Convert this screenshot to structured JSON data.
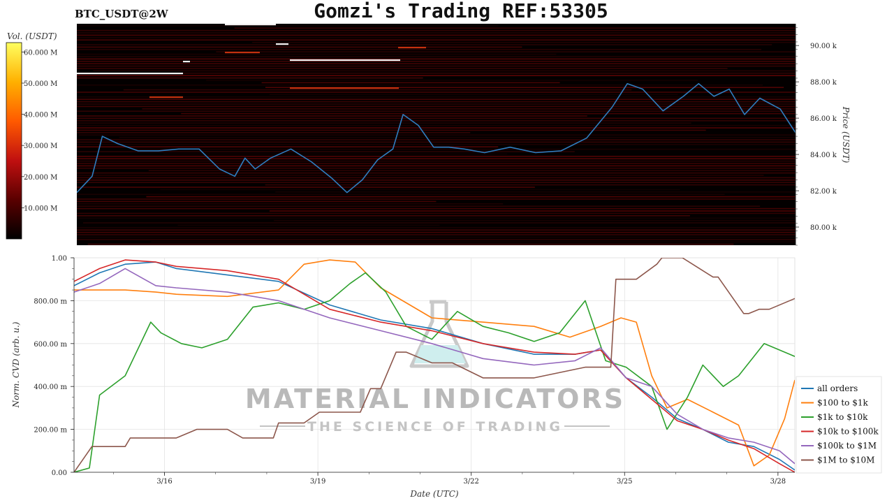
{
  "header": {
    "symbol": "BTC_USDT@2W",
    "title": "Gomzi's Trading REF:53305"
  },
  "watermark": {
    "name": "MATERIAL INDICATORS",
    "tagline": "THE SCIENCE OF TRADING"
  },
  "colorbar": {
    "label": "Vol. (USDT)",
    "ticks": [
      "10.000 M",
      "20.000 M",
      "30.000 M",
      "40.000 M",
      "50.000 M",
      "60.000 M"
    ],
    "values": [
      10,
      20,
      30,
      40,
      50,
      60
    ],
    "range": [
      0,
      63
    ],
    "colormap": [
      "#000000",
      "#5a0000",
      "#c01010",
      "#ff5a00",
      "#ffb000",
      "#ffff60"
    ]
  },
  "chart_data": [
    {
      "type": "heatmap",
      "ylabel": "Price (USDT)",
      "ylim": [
        79,
        91.2
      ],
      "y_ticks": [
        "80.00 k",
        "82.00 k",
        "84.00 k",
        "86.00 k",
        "88.00 k",
        "90.00 k"
      ],
      "y_tick_values": [
        80,
        82,
        84,
        86,
        88,
        90
      ],
      "x_range_days": [
        0,
        14.1
      ],
      "series": [
        {
          "name": "",
          "color": "#2f7ec1",
          "x": [
            0,
            0.3,
            0.5,
            0.8,
            1.2,
            1.6,
            2.0,
            2.4,
            2.8,
            3.1,
            3.3,
            3.5,
            3.8,
            4.2,
            4.6,
            5.0,
            5.3,
            5.6,
            5.9,
            6.2,
            6.4,
            6.7,
            7.0,
            7.3,
            7.6,
            8.0,
            8.5,
            9.0,
            9.5,
            10.0,
            10.5,
            10.8,
            11.1,
            11.5,
            11.9,
            12.2,
            12.5,
            12.8,
            13.1,
            13.4,
            13.8,
            14.1
          ],
          "y": [
            81.9,
            82.8,
            85.0,
            84.6,
            84.2,
            84.2,
            84.3,
            84.3,
            83.2,
            82.8,
            83.8,
            83.2,
            83.8,
            84.3,
            83.6,
            82.7,
            81.9,
            82.6,
            83.7,
            84.3,
            86.2,
            85.6,
            84.4,
            84.4,
            84.3,
            84.1,
            84.4,
            84.1,
            84.2,
            84.9,
            86.6,
            87.9,
            87.6,
            86.4,
            87.2,
            87.9,
            87.2,
            87.6,
            86.2,
            87.1,
            86.5,
            85.2
          ]
        }
      ]
    },
    {
      "type": "line",
      "xlabel": "Date (UTC)",
      "ylabel": "Norm. CVD (arb. u.)",
      "ylim": [
        0,
        1
      ],
      "y_ticks": [
        "0.00",
        "200.00 m",
        "400.00 m",
        "600.00 m",
        "800.00 m",
        "1.00"
      ],
      "y_tick_values": [
        0,
        0.2,
        0.4,
        0.6,
        0.8,
        1.0
      ],
      "x_categories": [
        "3/16",
        "3/19",
        "3/22",
        "3/25",
        "3/28"
      ],
      "x_tick_days": [
        1.77,
        4.77,
        7.77,
        10.77,
        13.77
      ],
      "x_range_days": [
        0,
        14.1
      ],
      "legend_position": "right",
      "series": [
        {
          "name": "all orders",
          "color": "#1f77b4",
          "x": [
            0,
            0.5,
            1.0,
            1.6,
            2.0,
            3.0,
            4.0,
            5.0,
            6.0,
            7.0,
            8.0,
            9.0,
            9.8,
            10.3,
            10.8,
            11.3,
            11.8,
            12.3,
            12.8,
            13.3,
            13.8,
            14.1
          ],
          "y": [
            0.87,
            0.93,
            0.97,
            0.98,
            0.95,
            0.92,
            0.89,
            0.78,
            0.71,
            0.67,
            0.6,
            0.55,
            0.55,
            0.57,
            0.44,
            0.35,
            0.25,
            0.2,
            0.14,
            0.12,
            0.06,
            0.01
          ]
        },
        {
          "name": "$100 to $1k",
          "color": "#ff7f0e",
          "x": [
            0,
            1.0,
            1.6,
            2.0,
            3.0,
            4.0,
            4.5,
            5.0,
            5.5,
            6.0,
            7.0,
            8.0,
            9.0,
            9.7,
            10.3,
            10.7,
            11.0,
            11.3,
            11.6,
            12.0,
            12.5,
            13.0,
            13.3,
            13.6,
            13.9,
            14.1
          ],
          "y": [
            0.85,
            0.85,
            0.84,
            0.83,
            0.82,
            0.85,
            0.97,
            0.99,
            0.98,
            0.86,
            0.72,
            0.7,
            0.68,
            0.63,
            0.68,
            0.72,
            0.7,
            0.45,
            0.3,
            0.34,
            0.28,
            0.22,
            0.03,
            0.08,
            0.25,
            0.43
          ]
        },
        {
          "name": "$1k to $10k",
          "color": "#2ca02c",
          "x": [
            0,
            0.3,
            0.5,
            1.0,
            1.5,
            1.7,
            2.1,
            2.5,
            3.0,
            3.5,
            4.0,
            4.5,
            5.0,
            5.4,
            5.7,
            6.1,
            6.5,
            7.0,
            7.5,
            8.0,
            8.5,
            9.0,
            9.5,
            10.0,
            10.4,
            10.8,
            11.3,
            11.6,
            12.0,
            12.3,
            12.7,
            13.0,
            13.5,
            14.1
          ],
          "y": [
            0.0,
            0.02,
            0.36,
            0.45,
            0.7,
            0.65,
            0.6,
            0.58,
            0.62,
            0.77,
            0.79,
            0.76,
            0.8,
            0.88,
            0.93,
            0.84,
            0.68,
            0.62,
            0.75,
            0.68,
            0.65,
            0.61,
            0.65,
            0.8,
            0.52,
            0.49,
            0.4,
            0.2,
            0.35,
            0.5,
            0.4,
            0.45,
            0.6,
            0.54
          ]
        },
        {
          "name": "$10k to $100k",
          "color": "#d62728",
          "x": [
            0,
            0.5,
            1.0,
            1.6,
            2.0,
            3.0,
            4.0,
            5.0,
            6.0,
            7.0,
            8.0,
            9.0,
            9.8,
            10.3,
            10.8,
            11.3,
            11.8,
            12.3,
            12.8,
            13.3,
            13.8,
            14.1
          ],
          "y": [
            0.89,
            0.95,
            0.99,
            0.98,
            0.96,
            0.94,
            0.9,
            0.76,
            0.7,
            0.66,
            0.6,
            0.56,
            0.55,
            0.57,
            0.44,
            0.34,
            0.24,
            0.2,
            0.15,
            0.11,
            0.04,
            0.0
          ]
        },
        {
          "name": "$100k to $1M",
          "color": "#9467bd",
          "x": [
            0,
            0.5,
            1.0,
            1.6,
            2.0,
            3.0,
            4.0,
            5.0,
            6.0,
            7.0,
            8.0,
            9.0,
            9.8,
            10.3,
            10.8,
            11.3,
            11.8,
            12.3,
            12.8,
            13.3,
            13.8,
            14.1
          ],
          "y": [
            0.84,
            0.88,
            0.95,
            0.87,
            0.86,
            0.84,
            0.8,
            0.72,
            0.66,
            0.6,
            0.53,
            0.5,
            0.52,
            0.58,
            0.44,
            0.4,
            0.27,
            0.2,
            0.16,
            0.14,
            0.1,
            0.04
          ]
        },
        {
          "name": "$1M to $10M",
          "color": "#8c564b",
          "x": [
            0,
            0.35,
            1.0,
            1.1,
            2.0,
            2.4,
            3.0,
            3.3,
            3.9,
            4.0,
            4.5,
            4.8,
            5.6,
            5.8,
            6.0,
            6.3,
            6.5,
            7.0,
            7.4,
            8.0,
            9.0,
            10.0,
            10.5,
            10.6,
            11.0,
            11.4,
            11.5,
            11.9,
            12.5,
            12.6,
            13.1,
            13.2,
            13.4,
            13.6,
            14.1
          ],
          "y": [
            0.0,
            0.12,
            0.12,
            0.16,
            0.16,
            0.2,
            0.2,
            0.16,
            0.16,
            0.23,
            0.23,
            0.28,
            0.28,
            0.39,
            0.39,
            0.56,
            0.56,
            0.51,
            0.51,
            0.44,
            0.44,
            0.49,
            0.49,
            0.9,
            0.9,
            0.97,
            1.0,
            1.0,
            0.91,
            0.91,
            0.74,
            0.74,
            0.76,
            0.76,
            0.81
          ]
        }
      ]
    }
  ]
}
